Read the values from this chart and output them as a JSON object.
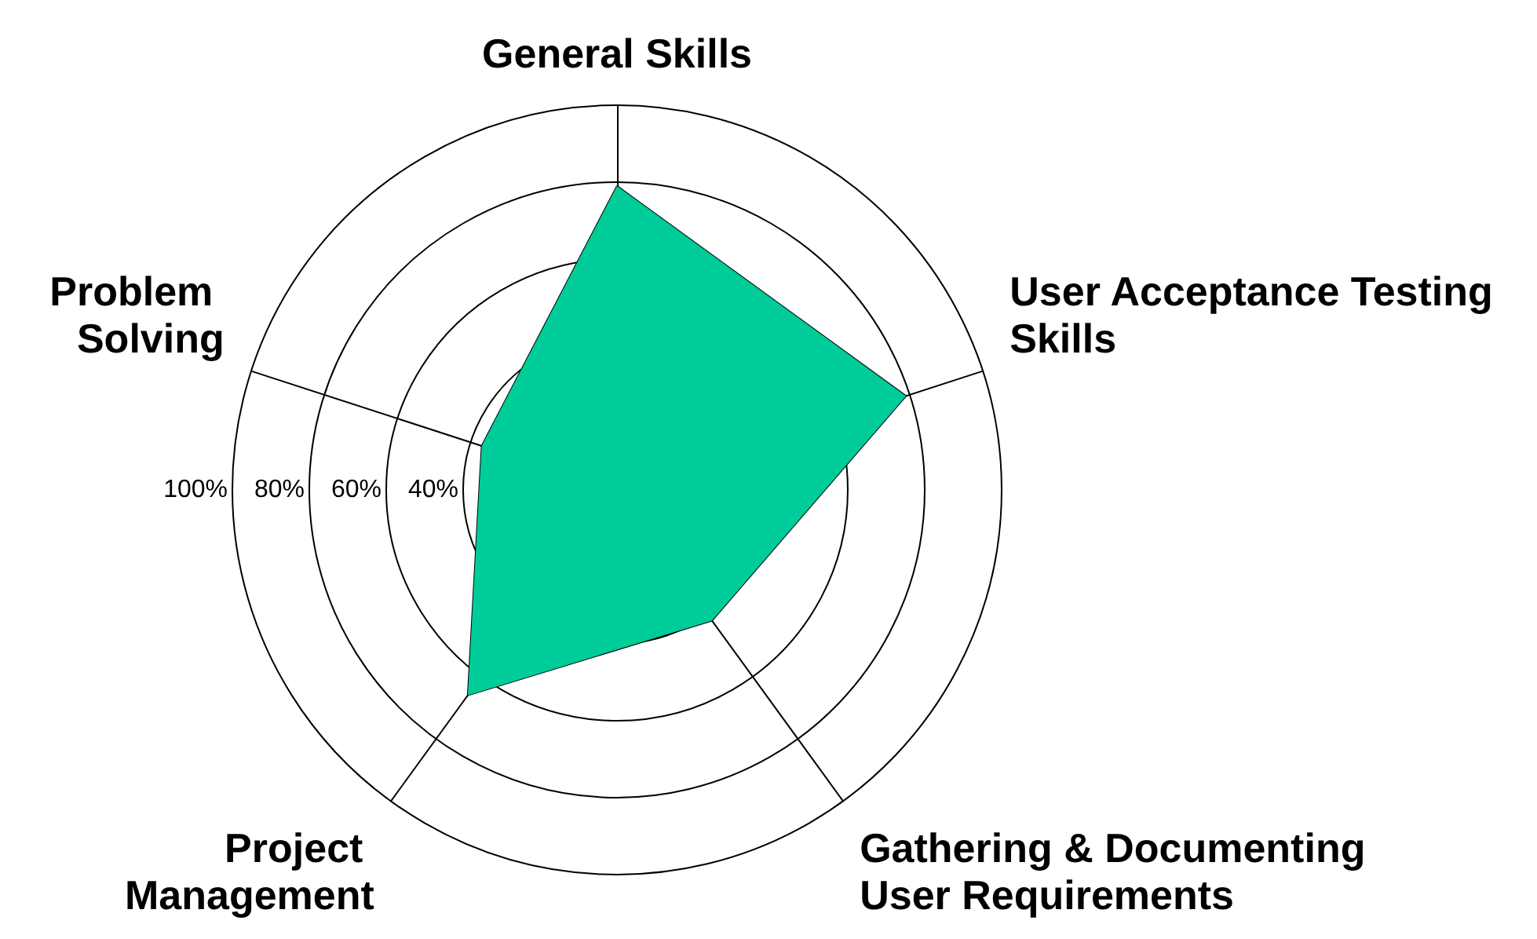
{
  "chart_data": {
    "type": "radar",
    "categories": [
      "General Skills",
      "User Acceptance Testing Skills",
      "Gathering & Documenting User Requirements",
      "Project Management",
      "Problem Solving"
    ],
    "series": [
      {
        "color": "#00cc99",
        "values": [
          79,
          79,
          42,
          66,
          37
        ]
      }
    ],
    "ylim": [
      0,
      100
    ],
    "yticks": [
      {
        "value": 40,
        "label": "40%"
      },
      {
        "value": 60,
        "label": "60%"
      },
      {
        "value": 80,
        "label": "80%"
      },
      {
        "value": 100,
        "label": "100%"
      }
    ],
    "marker": "none"
  }
}
